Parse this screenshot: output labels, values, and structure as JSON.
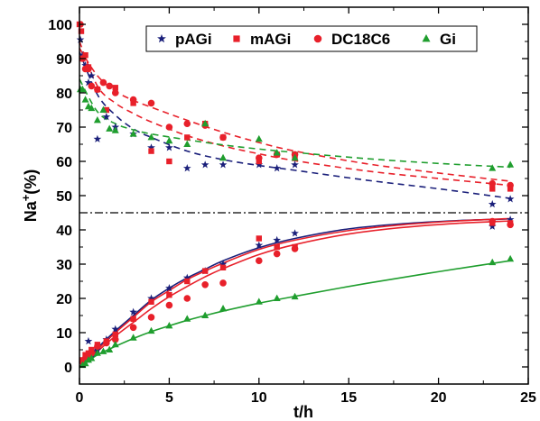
{
  "chart_data": {
    "type": "scatter",
    "xlabel": "t/h",
    "ylabel": "Na",
    "ylabel_sup": "+",
    "ylabel_suffix": "(%)",
    "xlim": [
      0,
      25
    ],
    "ylim": [
      -5,
      105
    ],
    "xticks": [
      0,
      5,
      10,
      15,
      20,
      25
    ],
    "yticks": [
      0,
      10,
      20,
      30,
      40,
      50,
      60,
      70,
      80,
      90,
      100
    ],
    "xtick_labels": [
      "0",
      "5",
      "10",
      "15",
      "20",
      "25"
    ],
    "ytick_labels": [
      "0",
      "10",
      "20",
      "30",
      "40",
      "50",
      "60",
      "70",
      "80",
      "90",
      "100"
    ],
    "grid": false,
    "legend_position": "top-right",
    "reference_line": {
      "y": 45,
      "style": "dash-dot",
      "color": "#000000"
    },
    "series": [
      {
        "name": "pAGi",
        "color": "#1a1f7a",
        "marker": "star",
        "upper": {
          "points": [
            [
              0.05,
              95.5
            ],
            [
              0.17,
              91
            ],
            [
              0.33,
              88
            ],
            [
              0.5,
              83
            ],
            [
              0.67,
              85
            ],
            [
              1,
              66.5
            ],
            [
              1.5,
              73
            ],
            [
              2,
              70
            ],
            [
              3,
              68
            ],
            [
              4,
              64
            ],
            [
              5,
              64
            ],
            [
              6,
              58
            ],
            [
              7,
              59
            ],
            [
              8,
              59
            ],
            [
              10,
              59
            ],
            [
              11,
              58
            ],
            [
              12,
              59
            ],
            [
              23,
              47.5
            ],
            [
              24,
              49
            ]
          ],
          "fit": [
            [
              0,
              92
            ],
            [
              1,
              79.5
            ],
            [
              2,
              73.5
            ],
            [
              3,
              69.5
            ],
            [
              4,
              67
            ],
            [
              6,
              63
            ],
            [
              8,
              60.5
            ],
            [
              10,
              58.8
            ],
            [
              12,
              57.4
            ],
            [
              16,
              54.5
            ],
            [
              20,
              52
            ],
            [
              24,
              49.2
            ]
          ]
        },
        "lower": {
          "points": [
            [
              0.17,
              1
            ],
            [
              0.5,
              7.5
            ],
            [
              0.67,
              3
            ],
            [
              1,
              5
            ],
            [
              1.5,
              8
            ],
            [
              2,
              11
            ],
            [
              3,
              16
            ],
            [
              4,
              20
            ],
            [
              5,
              23
            ],
            [
              6,
              26
            ],
            [
              7,
              28
            ],
            [
              8,
              30
            ],
            [
              10,
              35.5
            ],
            [
              11,
              37
            ],
            [
              12,
              39
            ],
            [
              23,
              41
            ],
            [
              24,
              43
            ]
          ],
          "fit": [
            [
              0,
              0
            ],
            [
              1,
              5.5
            ],
            [
              2,
              10.5
            ],
            [
              3,
              15
            ],
            [
              4,
              19.5
            ],
            [
              5,
              23
            ],
            [
              6,
              26
            ],
            [
              7,
              28.5
            ],
            [
              8,
              31
            ],
            [
              10,
              34.8
            ],
            [
              12,
              37.5
            ],
            [
              15,
              40.3
            ],
            [
              18,
              41.8
            ],
            [
              21,
              42.7
            ],
            [
              24,
              43.2
            ]
          ]
        }
      },
      {
        "name": "mAGi",
        "color": "#e8202a",
        "marker": "square",
        "upper": {
          "points": [
            [
              0,
              100
            ],
            [
              0.1,
              98
            ],
            [
              0.17,
              90
            ],
            [
              0.33,
              91
            ],
            [
              0.5,
              87.5
            ],
            [
              1,
              81
            ],
            [
              1.5,
              75
            ],
            [
              2,
              81.5
            ],
            [
              3,
              77
            ],
            [
              4,
              63
            ],
            [
              5,
              60
            ],
            [
              6,
              67
            ],
            [
              7,
              71
            ],
            [
              8,
              67
            ],
            [
              10,
              60
            ],
            [
              11,
              62
            ],
            [
              12,
              61
            ],
            [
              23,
              52
            ],
            [
              24,
              52
            ]
          ],
          "fit": [
            [
              0,
              95
            ],
            [
              1,
              82
            ],
            [
              2,
              77
            ],
            [
              3,
              74
            ],
            [
              4,
              71.5
            ],
            [
              6,
              67.5
            ],
            [
              8,
              64.5
            ],
            [
              10,
              62.2
            ],
            [
              12,
              60.2
            ],
            [
              16,
              57.2
            ],
            [
              20,
              55
            ],
            [
              24,
              53
            ]
          ]
        },
        "lower": {
          "points": [
            [
              0.17,
              2
            ],
            [
              0.33,
              3.5
            ],
            [
              0.5,
              4
            ],
            [
              0.67,
              5
            ],
            [
              1,
              6.5
            ],
            [
              1.5,
              7.5
            ],
            [
              2,
              9.5
            ],
            [
              3,
              14
            ],
            [
              4,
              19
            ],
            [
              5,
              21
            ],
            [
              6,
              25
            ],
            [
              7,
              28
            ],
            [
              8,
              29
            ],
            [
              10,
              37.5
            ],
            [
              11,
              35
            ],
            [
              12,
              35
            ],
            [
              23,
              42
            ],
            [
              24,
              42
            ]
          ],
          "fit": [
            [
              0,
              0
            ],
            [
              1,
              5
            ],
            [
              2,
              10
            ],
            [
              3,
              14.5
            ],
            [
              4,
              19
            ],
            [
              5,
              22.3
            ],
            [
              6,
              25.5
            ],
            [
              7,
              28
            ],
            [
              8,
              30.3
            ],
            [
              10,
              34.3
            ],
            [
              12,
              37
            ],
            [
              15,
              39.8
            ],
            [
              18,
              41.5
            ],
            [
              21,
              42.6
            ],
            [
              24,
              43.3
            ]
          ]
        }
      },
      {
        "name": "DC18C6",
        "color": "#e8202a",
        "marker": "circle",
        "upper": {
          "points": [
            [
              0.05,
              100
            ],
            [
              0.17,
              90
            ],
            [
              0.33,
              87
            ],
            [
              0.5,
              87
            ],
            [
              0.67,
              82
            ],
            [
              1,
              81
            ],
            [
              1.33,
              83
            ],
            [
              1.67,
              82
            ],
            [
              2,
              80
            ],
            [
              3,
              78
            ],
            [
              4,
              77
            ],
            [
              5,
              70
            ],
            [
              6,
              71
            ],
            [
              7,
              70.5
            ],
            [
              8,
              67
            ],
            [
              10,
              61
            ],
            [
              11,
              62
            ],
            [
              12,
              62
            ],
            [
              23,
              53.5
            ],
            [
              24,
              53
            ]
          ],
          "fit": [
            [
              0,
              93
            ],
            [
              1,
              85
            ],
            [
              2,
              80.5
            ],
            [
              3,
              77.8
            ],
            [
              4,
              75.8
            ],
            [
              6,
              72
            ],
            [
              8,
              68.5
            ],
            [
              10,
              65.5
            ],
            [
              12,
              63
            ],
            [
              16,
              59.3
            ],
            [
              20,
              56.6
            ],
            [
              24,
              54.2
            ]
          ]
        },
        "lower": {
          "points": [
            [
              0.17,
              1.5
            ],
            [
              0.33,
              2.5
            ],
            [
              0.5,
              3
            ],
            [
              0.67,
              4
            ],
            [
              1,
              6
            ],
            [
              1.5,
              7
            ],
            [
              2,
              8
            ],
            [
              3,
              11.5
            ],
            [
              4,
              14.5
            ],
            [
              5,
              18
            ],
            [
              6,
              20
            ],
            [
              7,
              24
            ],
            [
              8,
              24.5
            ],
            [
              10,
              31
            ],
            [
              11,
              33
            ],
            [
              12,
              34.5
            ],
            [
              23,
              42.5
            ],
            [
              24,
              41.5
            ]
          ],
          "fit": [
            [
              0,
              0
            ],
            [
              1,
              4.5
            ],
            [
              2,
              9
            ],
            [
              3,
              13
            ],
            [
              4,
              17
            ],
            [
              5,
              20.5
            ],
            [
              6,
              23.5
            ],
            [
              7,
              26.3
            ],
            [
              8,
              28.7
            ],
            [
              10,
              32.8
            ],
            [
              12,
              35.7
            ],
            [
              15,
              38.8
            ],
            [
              18,
              40.7
            ],
            [
              21,
              41.9
            ],
            [
              24,
              42.6
            ]
          ]
        }
      },
      {
        "name": "Gi",
        "color": "#1f9e2e",
        "marker": "triangle",
        "upper": {
          "points": [
            [
              0.05,
              81
            ],
            [
              0.17,
              81
            ],
            [
              0.33,
              78
            ],
            [
              0.5,
              76
            ],
            [
              0.67,
              75.5
            ],
            [
              1,
              72
            ],
            [
              1.33,
              75
            ],
            [
              1.67,
              69.5
            ],
            [
              2,
              69
            ],
            [
              3,
              68
            ],
            [
              4,
              67
            ],
            [
              5,
              66
            ],
            [
              6,
              65
            ],
            [
              7,
              71
            ],
            [
              8,
              61
            ],
            [
              10,
              66.5
            ],
            [
              11,
              62.5
            ],
            [
              12,
              61
            ],
            [
              23,
              58
            ],
            [
              24,
              59
            ]
          ],
          "fit": [
            [
              0,
              84
            ],
            [
              1,
              74.5
            ],
            [
              2,
              71
            ],
            [
              3,
              69.2
            ],
            [
              4,
              68
            ],
            [
              6,
              66.3
            ],
            [
              8,
              64.8
            ],
            [
              10,
              63.6
            ],
            [
              12,
              62.6
            ],
            [
              16,
              60.8
            ],
            [
              20,
              59.4
            ],
            [
              24,
              58.3
            ]
          ]
        },
        "lower": {
          "points": [
            [
              0.17,
              0.5
            ],
            [
              0.33,
              1
            ],
            [
              0.5,
              2
            ],
            [
              0.67,
              2.5
            ],
            [
              1,
              4
            ],
            [
              1.33,
              4.5
            ],
            [
              1.67,
              5
            ],
            [
              2,
              6.5
            ],
            [
              3,
              8.5
            ],
            [
              4,
              10.5
            ],
            [
              5,
              12
            ],
            [
              6,
              14
            ],
            [
              7,
              15
            ],
            [
              8,
              17
            ],
            [
              10,
              19
            ],
            [
              11,
              20
            ],
            [
              12,
              20.5
            ],
            [
              23,
              30.5
            ],
            [
              24,
              31.5
            ]
          ],
          "fit": [
            [
              0,
              0
            ],
            [
              1,
              3.5
            ],
            [
              2,
              6
            ],
            [
              3,
              8.3
            ],
            [
              4,
              10.3
            ],
            [
              5,
              12
            ],
            [
              6,
              13.6
            ],
            [
              7,
              15
            ],
            [
              8,
              16.3
            ],
            [
              10,
              18.6
            ],
            [
              12,
              20.6
            ],
            [
              16,
              24.4
            ],
            [
              20,
              27.8
            ],
            [
              24,
              31
            ]
          ]
        }
      }
    ]
  }
}
